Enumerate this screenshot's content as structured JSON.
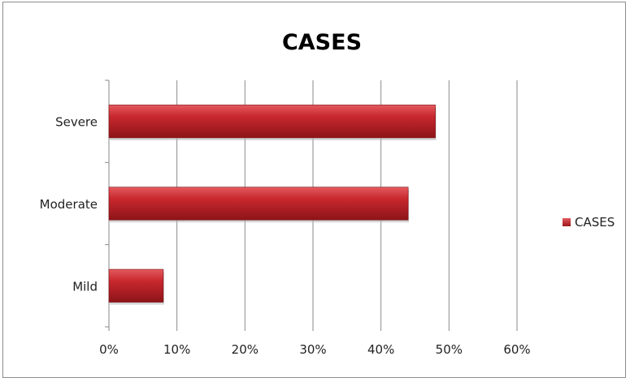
{
  "chart_data": {
    "type": "bar",
    "orientation": "horizontal",
    "title": "CASES",
    "xlabel": "",
    "ylabel": "",
    "categories": [
      "Mild",
      "Moderate",
      "Severe"
    ],
    "series": [
      {
        "name": "CASES",
        "values": [
          8,
          44,
          48
        ]
      }
    ],
    "xlim": [
      0,
      60
    ],
    "x_ticks": [
      "0%",
      "10%",
      "20%",
      "30%",
      "40%",
      "50%",
      "60%"
    ],
    "grid": true,
    "legend": "right",
    "bar_color": "#c0262c"
  }
}
